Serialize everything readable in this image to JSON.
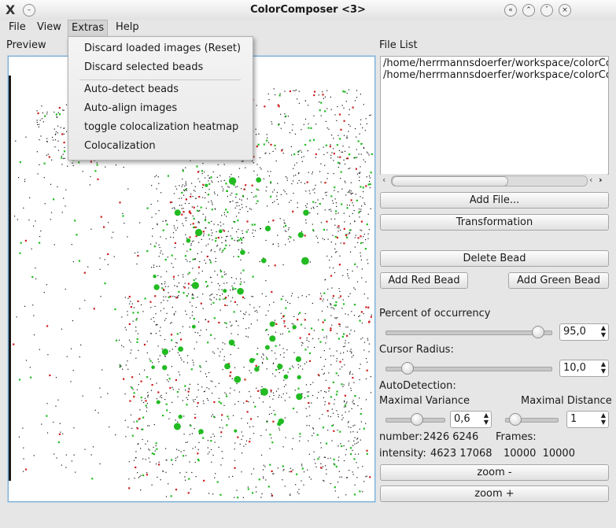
{
  "window": {
    "logo": "X",
    "menu_btn": "–",
    "title": "ColorComposer <3>",
    "buttons": [
      "«",
      "⌃",
      "ˇ",
      "×"
    ]
  },
  "menubar": {
    "items": [
      "File",
      "View",
      "Extras",
      "Help"
    ]
  },
  "extras_menu": {
    "items": [
      "Discard loaded images (Reset)",
      "Discard selected beads",
      "Auto-detect beads",
      "Auto-align images",
      "toggle colocalization heatmap",
      "Colocalization"
    ]
  },
  "preview": {
    "label": "Preview"
  },
  "file_list": {
    "label": "File List",
    "items": [
      "/home/herrmannsdoerfer/workspace/colorCo",
      "/home/herrmannsdoerfer/workspace/colorCo"
    ]
  },
  "buttons": {
    "add_file": "Add File...",
    "transformation": "Transformation",
    "delete_bead": "Delete Bead",
    "add_red": "Add Red Bead",
    "add_green": "Add Green Bead",
    "zoom_minus": "zoom -",
    "zoom_plus": "zoom +"
  },
  "occurrency": {
    "label": "Percent of occurrency",
    "value": "95,0",
    "slider_fraction": 0.95
  },
  "cursor_radius": {
    "label": "Cursor Radius:",
    "value": "10,0",
    "slider_fraction": 0.1
  },
  "autodetection": {
    "label": "AutoDetection:",
    "variance_label": "Maximal Variance",
    "variance_value": "0,6",
    "distance_label": "Maximal Distance",
    "distance_value": "1"
  },
  "stats": {
    "number_label": "number:",
    "number_values": "2426 6246",
    "frames_label": "Frames:",
    "intensity_label": "intensity:",
    "intensity_values": "4623 17068",
    "frames_values": "10000  10000"
  },
  "colors": {
    "accent": "#7aaed6",
    "red_bead": "#cc1f1f",
    "green_bead": "#22bb22",
    "dot": "#111111"
  }
}
